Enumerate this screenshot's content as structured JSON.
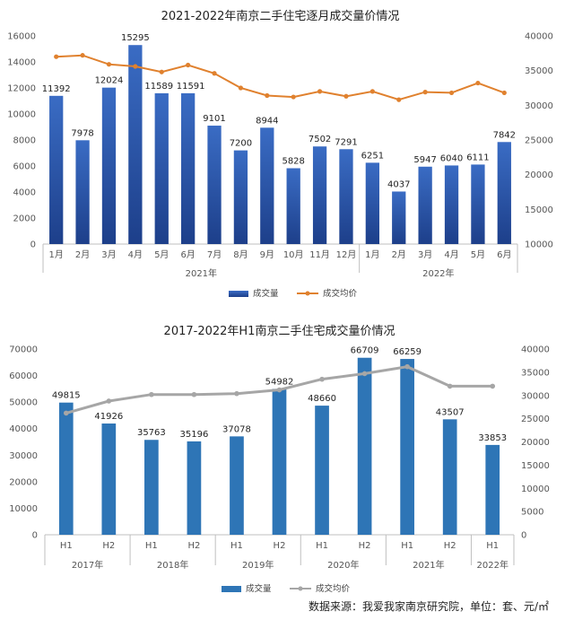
{
  "chart_data": [
    {
      "type": "bar",
      "title": "2021-2022年南京二手住宅逐月成交量价情况",
      "categories": [
        "1月",
        "2月",
        "3月",
        "4月",
        "5月",
        "6月",
        "7月",
        "8月",
        "9月",
        "10月",
        "11月",
        "12月",
        "1月",
        "2月",
        "3月",
        "4月",
        "5月",
        "6月"
      ],
      "groups": [
        {
          "label": "2021年",
          "start": 0,
          "end": 11
        },
        {
          "label": "2022年",
          "start": 12,
          "end": 17
        }
      ],
      "series": [
        {
          "name": "成交量",
          "kind": "bar",
          "axis": "left",
          "values": [
            11392,
            7978,
            12024,
            15295,
            11589,
            11591,
            9101,
            7200,
            8944,
            5828,
            7502,
            7291,
            6251,
            4037,
            5947,
            6040,
            6111,
            7842
          ]
        },
        {
          "name": "成交均价",
          "kind": "line",
          "axis": "right",
          "values": [
            37000,
            37200,
            35900,
            35600,
            34800,
            35800,
            34600,
            32500,
            31400,
            31200,
            32000,
            31300,
            32000,
            30800,
            31900,
            31800,
            33200,
            31800
          ]
        }
      ],
      "ylim": [
        0,
        16000
      ],
      "yticks": [
        0,
        2000,
        4000,
        6000,
        8000,
        10000,
        12000,
        14000,
        16000
      ],
      "y2lim": [
        10000,
        40000
      ],
      "y2ticks": [
        10000,
        15000,
        20000,
        25000,
        30000,
        35000,
        40000
      ],
      "legend_position": "bottom",
      "colors": {
        "bar": "#2a55a8",
        "line": "#e0812e"
      }
    },
    {
      "type": "bar",
      "title": "2017-2022年H1南京二手住宅成交量价情况",
      "categories": [
        "H1",
        "H2",
        "H1",
        "H2",
        "H1",
        "H2",
        "H1",
        "H2",
        "H1",
        "H2",
        "H1"
      ],
      "groups": [
        {
          "label": "2017年",
          "start": 0,
          "end": 1
        },
        {
          "label": "2018年",
          "start": 2,
          "end": 3
        },
        {
          "label": "2019年",
          "start": 4,
          "end": 5
        },
        {
          "label": "2020年",
          "start": 6,
          "end": 7
        },
        {
          "label": "2021年",
          "start": 8,
          "end": 9
        },
        {
          "label": "2022年",
          "start": 10,
          "end": 10
        }
      ],
      "series": [
        {
          "name": "成交量",
          "kind": "bar",
          "axis": "left",
          "values": [
            49815,
            41926,
            35763,
            35196,
            37078,
            54982,
            48660,
            66709,
            66259,
            43507,
            33853
          ]
        },
        {
          "name": "成交均价",
          "kind": "line",
          "axis": "right",
          "values": [
            26200,
            28800,
            30200,
            30200,
            30400,
            31200,
            33500,
            34700,
            36200,
            32000,
            32000
          ]
        }
      ],
      "ylim": [
        0,
        70000
      ],
      "yticks": [
        0,
        10000,
        20000,
        30000,
        40000,
        50000,
        60000,
        70000
      ],
      "y2lim": [
        0,
        40000
      ],
      "y2ticks": [
        0,
        5000,
        10000,
        15000,
        20000,
        25000,
        30000,
        35000,
        40000
      ],
      "legend_position": "bottom",
      "colors": {
        "bar": "#2e75b6",
        "line": "#a6a6a6"
      }
    }
  ],
  "source_note": "数据来源：我爱我家南京研究院，单位：套、元/㎡"
}
